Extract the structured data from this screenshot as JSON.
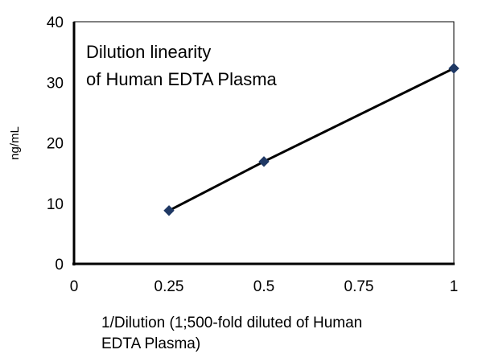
{
  "chart_data": {
    "type": "scatter",
    "title": "",
    "annotation": [
      "Dilution linearity",
      "of Human EDTA Plasma"
    ],
    "xlabel": [
      "1/Dilution (1;500-fold diluted of Human",
      "EDTA Plasma)"
    ],
    "ylabel": "ng/mL",
    "xlim": [
      0,
      1
    ],
    "ylim": [
      0,
      40
    ],
    "xticks": [
      "0",
      "0.25",
      "0.5",
      "0.75",
      "1"
    ],
    "yticks": [
      "0",
      "10",
      "20",
      "30",
      "40"
    ],
    "grid": false,
    "legend": "none",
    "series": [
      {
        "x": [
          0.25,
          0.5,
          1
        ],
        "y": [
          8.8,
          16.9,
          32.3
        ],
        "line": true,
        "marker": "diamond",
        "color": "#1f3864"
      }
    ]
  }
}
